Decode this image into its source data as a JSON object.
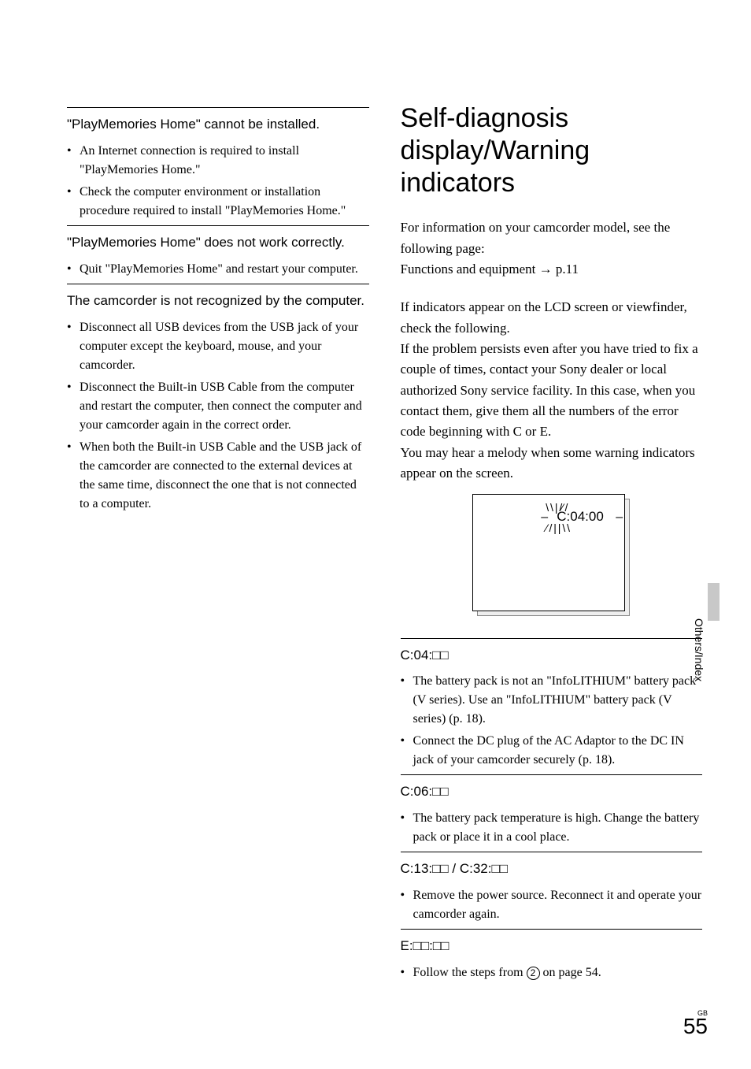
{
  "left": {
    "s1": {
      "heading": "\"PlayMemories Home\" cannot be installed.",
      "items": [
        "An Internet connection is required to install \"PlayMemories Home.\"",
        "Check the computer environment or installation procedure required to install \"PlayMemories Home.\""
      ]
    },
    "s2": {
      "heading": "\"PlayMemories Home\" does not work correctly.",
      "items": [
        "Quit \"PlayMemories Home\" and restart your computer."
      ]
    },
    "s3": {
      "heading": "The camcorder is not recognized by the computer.",
      "items": [
        "Disconnect all USB devices from the USB jack of your computer except the keyboard, mouse, and your camcorder.",
        "Disconnect the Built-in USB Cable from the computer and restart the computer, then connect the computer and your camcorder again in the correct order.",
        "When both the Built-in USB Cable and the USB jack of the camcorder are connected to the external devices at the same time, disconnect the one that is not connected to a computer."
      ]
    }
  },
  "right": {
    "title": "Self-diagnosis display/Warning indicators",
    "intro_l1": "For information on your camcorder model, see the following page:",
    "intro_l2_a": "Functions and equipment ",
    "intro_l2_b": " p.11",
    "para": "If indicators appear on the LCD screen or viewfinder, check the following.\nIf the problem persists even after you have tried to fix a couple of times, contact your Sony dealer or local authorized Sony service facility. In this case, when you contact them, give them all the numbers of the error code beginning with C or E.\nYou may hear a melody when some warning indicators appear on the screen.",
    "lcd_code": "C:04:00",
    "c04": {
      "heading": "C:04:□□",
      "items": [
        "The battery pack is not an \"InfoLITHIUM\" battery pack (V series). Use an \"InfoLITHIUM\" battery pack (V series) (p. 18).",
        "Connect the DC plug of the AC Adaptor to the DC IN jack of your camcorder securely (p. 18)."
      ]
    },
    "c06": {
      "heading": "C:06:□□",
      "items": [
        "The battery pack temperature is high. Change the battery pack or place it in a cool place."
      ]
    },
    "c13": {
      "heading": "C:13:□□ / C:32:□□",
      "items": [
        "Remove the power source. Reconnect it and operate your camcorder again."
      ]
    },
    "exx": {
      "heading": "E:□□:□□",
      "item_prefix": "Follow the steps from ",
      "item_circled": "2",
      "item_suffix": " on page 54."
    }
  },
  "side_tab": "Others/Index",
  "page_gb": "GB",
  "page_num": "55"
}
